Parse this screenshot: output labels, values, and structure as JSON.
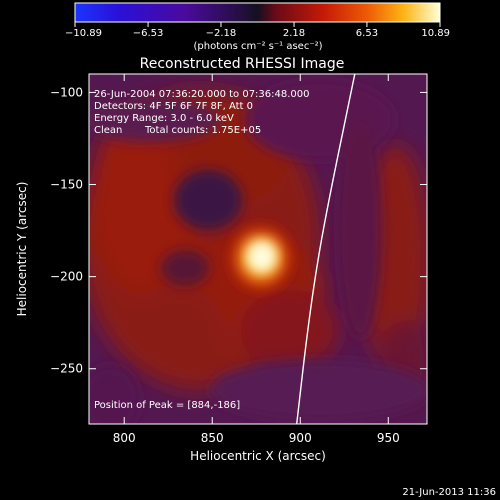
{
  "colorbar": {
    "ticks": [
      -10.89,
      -6.53,
      -2.18,
      2.18,
      6.53,
      10.89
    ],
    "tick_labels": [
      "−10.89",
      "−6.53",
      "−2.18",
      "2.18",
      "6.53",
      "10.89"
    ],
    "range": [
      -10.89,
      10.89
    ],
    "unit_label": "(photons cm⁻² s⁻¹ asec⁻²)"
  },
  "chart_data": {
    "type": "heatmap",
    "title": "Reconstructed RHESSI Image",
    "xlabel": "Heliocentric X (arcsec)",
    "ylabel": "Heliocentric Y (arcsec)",
    "xlim": [
      780,
      972
    ],
    "ylim": [
      -280,
      -90
    ],
    "x_ticks": [
      800,
      850,
      900,
      950
    ],
    "y_ticks": [
      -100,
      -150,
      -200,
      -250
    ],
    "x_tick_labels": [
      "800",
      "850",
      "900",
      "950"
    ],
    "y_tick_labels": [
      "−100",
      "−150",
      "−200",
      "−250"
    ],
    "peak": [
      884,
      -186
    ],
    "limb_curve": [
      [
        931,
        -90
      ],
      [
        918,
        -150
      ],
      [
        910,
        -190
      ],
      [
        904,
        -230
      ],
      [
        898,
        -280
      ]
    ],
    "annotations": [
      "26-Jun-2004 07:36:20.000 to 07:36:48.000",
      "Detectors: 4F 5F 6F 7F 8F, Att 0",
      "Energy Range: 3.0 - 6.0 keV",
      "Clean",
      "Total counts: 1.75E+05",
      "Position of Peak = [884,-186]"
    ],
    "grid": false,
    "colormap": "hot with blue negative side"
  },
  "footer": {
    "timestamp": "21-Jun-2013 11:36"
  }
}
